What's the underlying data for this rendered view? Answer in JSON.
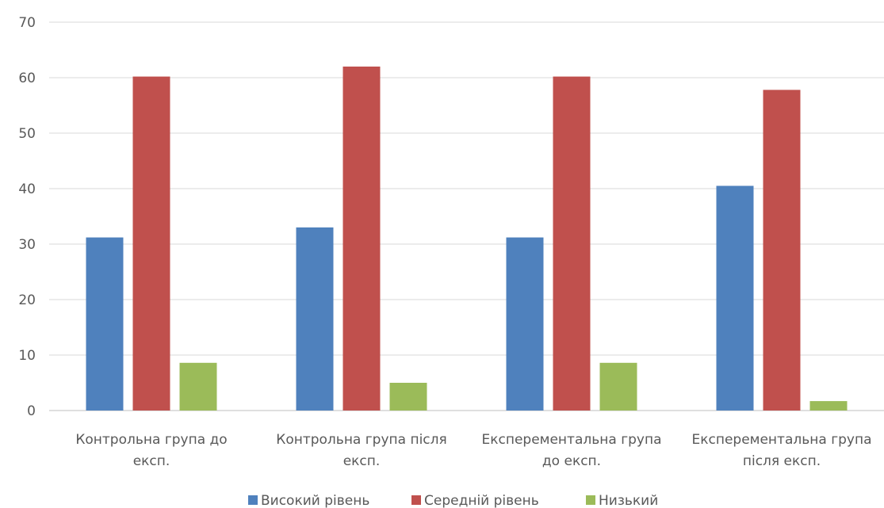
{
  "chart_data": {
    "type": "bar",
    "categories": [
      [
        "Контрольна група до",
        "експ."
      ],
      [
        "Контрольна група після",
        "експ."
      ],
      [
        "Експерементальна група",
        "до експ."
      ],
      [
        "Експерементальна група",
        "після експ."
      ]
    ],
    "series": [
      {
        "name": "Високий рівень",
        "color": "#4F81BD",
        "values": [
          31.2,
          33,
          31.2,
          40.5
        ]
      },
      {
        "name": "Середній рівень",
        "color": "#C0504D",
        "values": [
          60.2,
          62,
          60.2,
          57.8
        ]
      },
      {
        "name": "Низький",
        "color": "#9BBB59",
        "values": [
          8.6,
          5,
          8.6,
          1.7
        ]
      }
    ],
    "ylim": [
      0,
      70
    ],
    "yticks": [
      0,
      10,
      20,
      30,
      40,
      50,
      60,
      70
    ],
    "grid": true,
    "legend": "bottom",
    "title": "",
    "xlabel": "",
    "ylabel": ""
  }
}
